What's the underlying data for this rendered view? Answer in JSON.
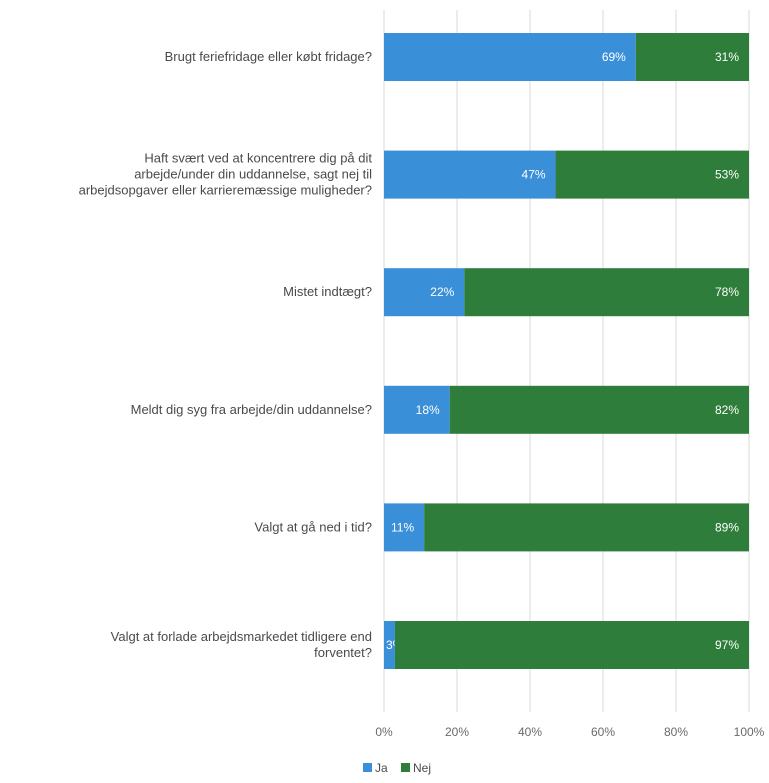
{
  "chart_data": {
    "type": "bar",
    "orientation": "horizontal",
    "stacked": true,
    "categories": [
      "Brugt feriefridage eller købt fridage?",
      "Haft svært ved at koncentrere dig på dit arbejde/under din uddannelse, sagt nej til arbejdsopgaver eller karrieremæssige muligheder?",
      "Mistet indtægt?",
      "Meldt dig syg fra arbejde/din uddannelse?",
      "Valgt at gå ned i tid?",
      "Valgt at forlade arbejdsmarkedet tidligere end forventet?"
    ],
    "category_lines": [
      [
        "Brugt feriefridage eller købt fridage?"
      ],
      [
        "Haft svært ved at koncentrere dig på dit",
        "arbejde/under din uddannelse, sagt nej til",
        "arbejdsopgaver eller karrieremæssige muligheder?"
      ],
      [
        "Mistet indtægt?"
      ],
      [
        "Meldt dig syg fra arbejde/din uddannelse?"
      ],
      [
        "Valgt at gå ned i tid?"
      ],
      [
        "Valgt at forlade arbejdsmarkedet tidligere end",
        "forventet?"
      ]
    ],
    "series": [
      {
        "name": "Ja",
        "values": [
          69,
          47,
          22,
          18,
          11,
          3
        ],
        "labels": [
          "69%",
          "47%",
          "22%",
          "18%",
          "11%",
          "3%"
        ],
        "color": "#3a8fd9"
      },
      {
        "name": "Nej",
        "values": [
          31,
          53,
          78,
          82,
          89,
          97
        ],
        "labels": [
          "31%",
          "53%",
          "78%",
          "82%",
          "89%",
          "97%"
        ],
        "color": "#2e7d3a"
      }
    ],
    "xlim": [
      0,
      100
    ],
    "ticks": [
      0,
      20,
      40,
      60,
      80,
      100
    ],
    "tick_labels": [
      "0%",
      "20%",
      "40%",
      "60%",
      "80%",
      "100%"
    ],
    "grid": true,
    "grid_color": "#d9d9d9",
    "legend_position": "bottom-center",
    "title": "",
    "xlabel": "",
    "ylabel": ""
  }
}
